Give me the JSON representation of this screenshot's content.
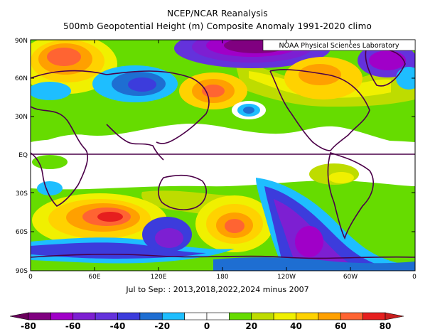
{
  "title_line1": "NCEP/NCAR Reanalysis",
  "title_line2": "500mb Geopotential Height (m) Composite Anomaly 1991-2020 climo",
  "lab_label": "NOAA Physical Sciences Laboratory",
  "subtitle": "Jul to Sep: : 2013,2018,2022,2024 minus 2007",
  "lat_ticks": [
    "90N",
    "60N",
    "30N",
    "EQ",
    "30S",
    "60S",
    "90S"
  ],
  "lon_ticks": [
    "0",
    "60E",
    "120E",
    "180",
    "120W",
    "60W",
    "0"
  ],
  "colorbar": {
    "tick_labels": [
      "-80",
      "-60",
      "-40",
      "-20",
      "0",
      "20",
      "40",
      "60",
      "80"
    ],
    "colors": [
      "#800080",
      "#a000c8",
      "#7d1fd2",
      "#6432dc",
      "#3c3cdc",
      "#1e6ed2",
      "#1ebeff",
      "#ffffff",
      "#ffffff",
      "#66dc00",
      "#bedc00",
      "#f0f000",
      "#ffd200",
      "#ffa000",
      "#ff6432",
      "#e61e1e"
    ],
    "low_color": "#6a005c",
    "high_color": "#c81e1e"
  },
  "map_data": {
    "lat_range": [
      -90,
      90
    ],
    "lon_range": [
      0,
      360
    ],
    "anomaly_features": [
      {
        "lon": 40,
        "lat": 68,
        "value": 75
      },
      {
        "lon": 170,
        "lat": 47,
        "value": 55
      },
      {
        "lon": 100,
        "lat": 57,
        "value": -40
      },
      {
        "lon": 20,
        "lat": 58,
        "value": -20
      },
      {
        "lon": 225,
        "lat": 76,
        "value": -75
      },
      {
        "lon": 305,
        "lat": 74,
        "value": -40
      },
      {
        "lon": 345,
        "lat": 72,
        "value": -35
      },
      {
        "lon": 210,
        "lat": 36,
        "value": -20
      },
      {
        "lon": 270,
        "lat": 66,
        "value": 40
      },
      {
        "lon": 70,
        "lat": -54,
        "value": 80
      },
      {
        "lon": 185,
        "lat": -58,
        "value": 60
      },
      {
        "lon": 315,
        "lat": -26,
        "value": 25
      },
      {
        "lon": 255,
        "lat": -55,
        "value": -65
      },
      {
        "lon": 225,
        "lat": -38,
        "value": -45
      },
      {
        "lon": 130,
        "lat": -58,
        "value": -40
      },
      {
        "lon": 30,
        "lat": -75,
        "value": -30
      },
      {
        "lon": 205,
        "lat": -82,
        "value": -50
      }
    ]
  }
}
